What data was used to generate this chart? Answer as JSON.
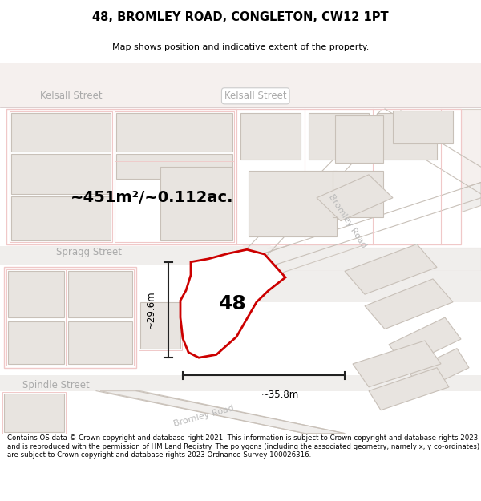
{
  "title_line1": "48, BROMLEY ROAD, CONGLETON, CW12 1PT",
  "title_line2": "Map shows position and indicative extent of the property.",
  "area_text": "~451m²/~0.112ac.",
  "width_label": "~35.8m",
  "height_label": "~29.6m",
  "number_label": "48",
  "footer_text": "Contains OS data © Crown copyright and database right 2021. This information is subject to Crown copyright and database rights 2023 and is reproduced with the permission of HM Land Registry. The polygons (including the associated geometry, namely x, y co-ordinates) are subject to Crown copyright and database rights 2023 Ordnance Survey 100026316.",
  "map_bg": "#ffffff",
  "road_outline_color": "#f0c8c8",
  "road_fill": "#f8f0f0",
  "building_fill": "#e8e4e0",
  "building_edge": "#c8c0b8",
  "highlight_color": "#cc0000",
  "street_label_color": "#aaaaaa",
  "road_label_color": "#bbbbbb",
  "dim_line_color": "#222222"
}
